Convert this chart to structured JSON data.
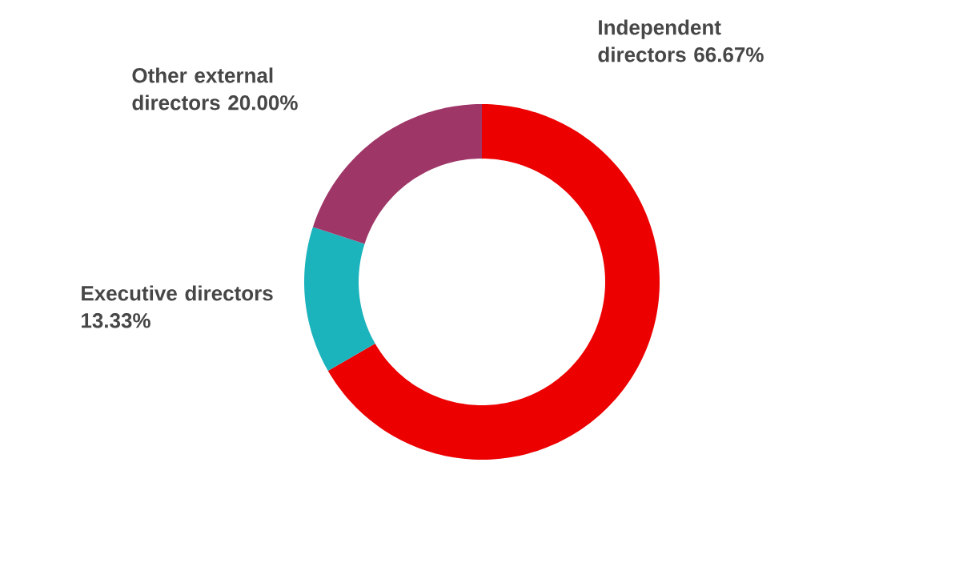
{
  "chart_data": {
    "type": "donut",
    "categories": [
      "Independent directors",
      "Executive directors",
      "Other external directors"
    ],
    "values": [
      66.67,
      13.33,
      20.0
    ],
    "colors": [
      "#ec0000",
      "#1bb3bc",
      "#9e3667"
    ],
    "value_labels": [
      "66.67%",
      "13.33%",
      "20.00%"
    ]
  }
}
